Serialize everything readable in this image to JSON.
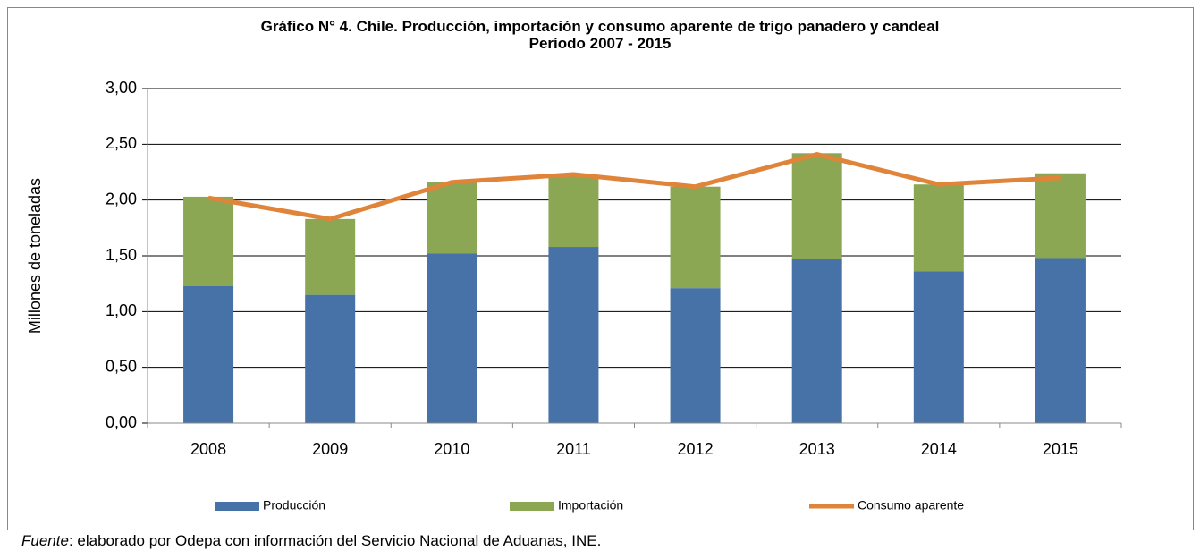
{
  "chart_data": {
    "type": "stacked_bar_line",
    "title": "Gráfico N° 4. Chile. Producción, importación y consumo aparente de trigo panadero y candeal",
    "subtitle": "Período 2007 - 2015",
    "y_label": "Millones de toneladas",
    "categories": [
      "2008",
      "2009",
      "2010",
      "2011",
      "2012",
      "2013",
      "2014",
      "2015"
    ],
    "series": [
      {
        "name": "Producción",
        "color": "#4672a8",
        "kind": "bar",
        "values": [
          1.23,
          1.15,
          1.52,
          1.58,
          1.21,
          1.47,
          1.36,
          1.48
        ]
      },
      {
        "name": "Importación",
        "color": "#8ba753",
        "kind": "bar",
        "values": [
          0.8,
          0.68,
          0.64,
          0.64,
          0.91,
          0.95,
          0.78,
          0.76
        ]
      },
      {
        "name": "Consumo aparente",
        "color": "#e0843a",
        "kind": "line",
        "values": [
          2.02,
          1.83,
          2.16,
          2.23,
          2.12,
          2.41,
          2.14,
          2.2
        ]
      }
    ],
    "ylim": [
      0,
      3
    ],
    "yticks": [
      {
        "value": 0,
        "label": "0,00"
      },
      {
        "value": 0.5,
        "label": "0,50"
      },
      {
        "value": 1,
        "label": "1,00"
      },
      {
        "value": 1.5,
        "label": "1,50"
      },
      {
        "value": 2,
        "label": "2,00"
      },
      {
        "value": 2.5,
        "label": "2,50"
      },
      {
        "value": 3,
        "label": "3,00"
      }
    ],
    "grid": true,
    "legend": "bottom",
    "source": {
      "label": "Fuente",
      "text": ": elaborado por Odepa con información del Servicio Nacional de Aduanas, INE."
    }
  }
}
